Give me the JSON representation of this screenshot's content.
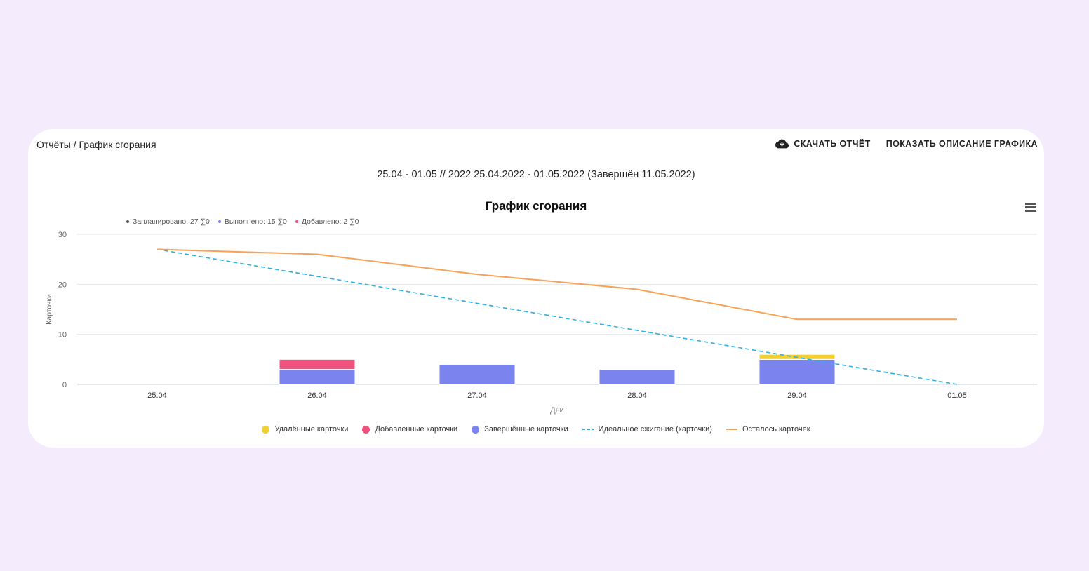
{
  "breadcrumb": {
    "parent": "Отчёты",
    "separator": " / ",
    "current": "График сгорания"
  },
  "actions": {
    "download": "СКАЧАТЬ ОТЧЁТ",
    "description": "ПОКАЗАТЬ ОПИСАНИЕ ГРАФИКА"
  },
  "period": "25.04 - 01.05 // 2022 25.04.2022 - 01.05.2022 (Завершён 11.05.2022)",
  "stats": [
    {
      "label": "Запланировано: 27 ∑0",
      "color": "#555555"
    },
    {
      "label": "Выполнено: 15 ∑0",
      "color": "#7b83ef"
    },
    {
      "label": "Добавлено: 2 ∑0",
      "color": "#f0527e"
    }
  ],
  "chart_data": {
    "type": "bar",
    "title": "График сгорания",
    "xlabel": "Дни",
    "ylabel": "Карточки",
    "ylim": [
      0,
      30
    ],
    "yticks": [
      0,
      10,
      20,
      30
    ],
    "categories": [
      "25.04",
      "26.04",
      "27.04",
      "28.04",
      "29.04",
      "01.05"
    ],
    "bar_series": [
      {
        "name": "Завершённые карточки",
        "color": "#7b83ef",
        "values": [
          0,
          3,
          4,
          3,
          5,
          0
        ]
      },
      {
        "name": "Добавленные карточки",
        "color": "#f0527e",
        "values": [
          0,
          2,
          0,
          0,
          0,
          0
        ]
      },
      {
        "name": "Удалённые карточки",
        "color": "#f2d02f",
        "values": [
          0,
          0,
          0,
          0,
          1,
          0
        ]
      }
    ],
    "line_series": [
      {
        "name": "Идеальное сжигание (карточки)",
        "color": "#2ab2e6",
        "dashed": true,
        "values": [
          27,
          21.6,
          16.2,
          10.8,
          5.4,
          0
        ]
      },
      {
        "name": "Осталось карточек",
        "color": "#f7a256",
        "dashed": false,
        "values": [
          27,
          26,
          22,
          19,
          13,
          13
        ]
      }
    ],
    "legend": [
      {
        "name": "Удалённые карточки",
        "color": "#f2d02f",
        "kind": "dot"
      },
      {
        "name": "Добавленные карточки",
        "color": "#f0527e",
        "kind": "dot"
      },
      {
        "name": "Завершённые карточки",
        "color": "#7b83ef",
        "kind": "dot"
      },
      {
        "name": "Идеальное сжигание (карточки)",
        "color": "#2ab2e6",
        "kind": "dash"
      },
      {
        "name": "Осталось карточек",
        "color": "#f7a256",
        "kind": "line"
      }
    ]
  }
}
